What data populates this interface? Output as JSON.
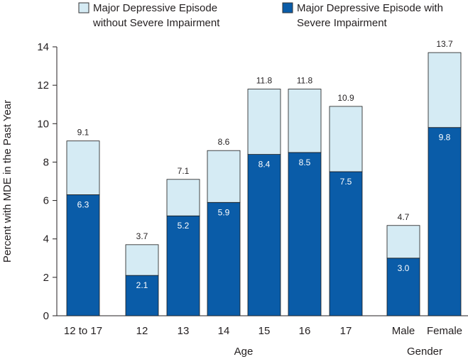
{
  "chart_data": {
    "type": "bar",
    "stacked": true,
    "title": "",
    "ylabel": "Percent with MDE in the Past Year",
    "ylim": [
      0,
      14
    ],
    "yticks": [
      0,
      2,
      4,
      6,
      8,
      10,
      12,
      14
    ],
    "grid": false,
    "legend_position": "top",
    "categories": [
      "12 to 17",
      "12",
      "13",
      "14",
      "15",
      "16",
      "17",
      "Male",
      "Female"
    ],
    "groups": [
      {
        "label": "Age",
        "members": [
          "12",
          "13",
          "14",
          "15",
          "16",
          "17"
        ]
      },
      {
        "label": "Gender",
        "members": [
          "Male",
          "Female"
        ]
      }
    ],
    "series": [
      {
        "name": "Major Depressive Episode with Severe Impairment",
        "legend_lines": [
          "Major Depressive Episode with",
          "Severe Impairment"
        ],
        "color": "#0a5ca8",
        "values": [
          6.3,
          2.1,
          5.2,
          5.9,
          8.4,
          8.5,
          7.5,
          3.0,
          9.8
        ],
        "labels": [
          "6.3",
          "2.1",
          "5.2",
          "5.9",
          "8.4",
          "8.5",
          "7.5",
          "3.0",
          "9.8"
        ]
      },
      {
        "name": "Major Depressive Episode without Severe Impairment",
        "legend_lines": [
          "Major Depressive Episode",
          "without Severe Impairment"
        ],
        "color": "#d5ebf4",
        "values": [
          2.8,
          1.6,
          1.9,
          2.7,
          3.4,
          3.3,
          3.4,
          1.7,
          3.9
        ]
      }
    ],
    "totals": [
      9.1,
      3.7,
      7.1,
      8.6,
      11.8,
      11.8,
      10.9,
      4.7,
      13.7
    ],
    "total_labels": [
      "9.1",
      "3.7",
      "7.1",
      "8.6",
      "11.8",
      "11.8",
      "10.9",
      "4.7",
      "13.7"
    ]
  }
}
